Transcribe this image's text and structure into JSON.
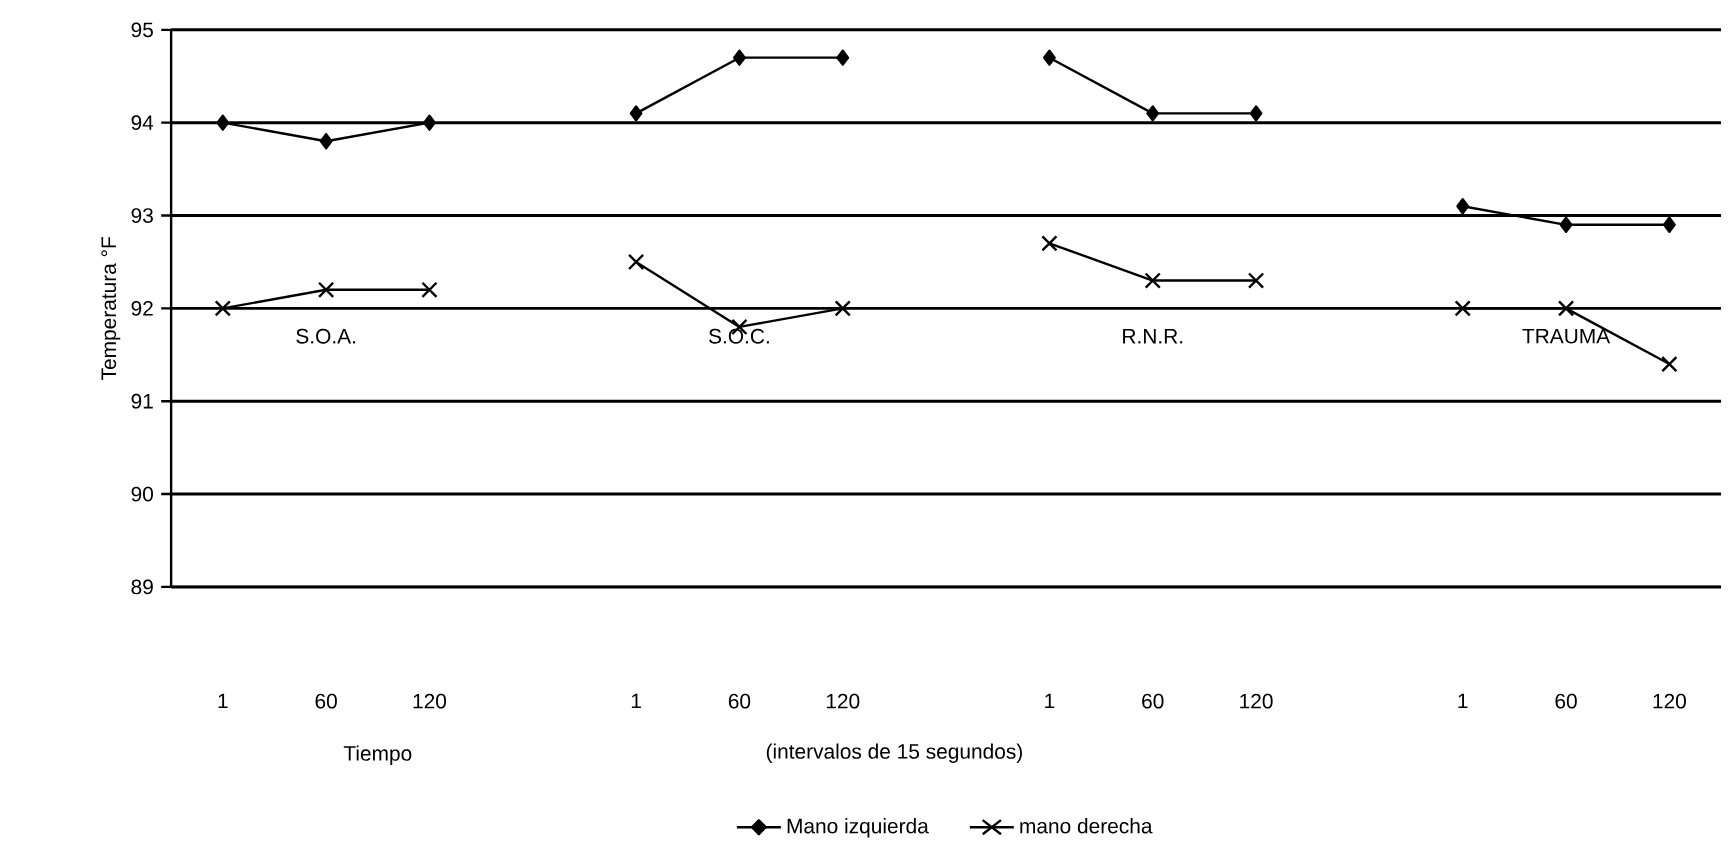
{
  "chart_data": {
    "type": "line",
    "ylabel": "Temperatura °F",
    "xlabel": "Tiempo",
    "categories": [
      "1",
      "60",
      "120",
      null,
      "1",
      "60",
      "120",
      null,
      "1",
      "60",
      "120",
      null,
      "1",
      "60",
      "120"
    ],
    "series": [
      {
        "name": "Mano izquierda",
        "color": "#000000",
        "marker": "diamond",
        "values": [
          94,
          93.8,
          94,
          null,
          94.1,
          94.7,
          94.7,
          null,
          94.7,
          94.1,
          94.1,
          null,
          93.1,
          92.9,
          92.9
        ]
      },
      {
        "name": "mano derecha",
        "color": "#000000",
        "marker": "cross",
        "values": [
          92,
          92.2,
          92.2,
          null,
          92.5,
          91.8,
          92,
          null,
          92.7,
          92.3,
          92.3,
          null,
          92,
          92,
          91.4
        ]
      }
    ],
    "ylim": [
      89,
      95
    ],
    "yticks": [
      89,
      90,
      91,
      92,
      93,
      94,
      95
    ],
    "grid": "y",
    "legend": "bottom",
    "annotations": [
      "S.O.A.",
      "S.O.C.",
      "R.N.R.",
      "TRAUMA",
      "(intervalos de 15 segundos)"
    ]
  }
}
